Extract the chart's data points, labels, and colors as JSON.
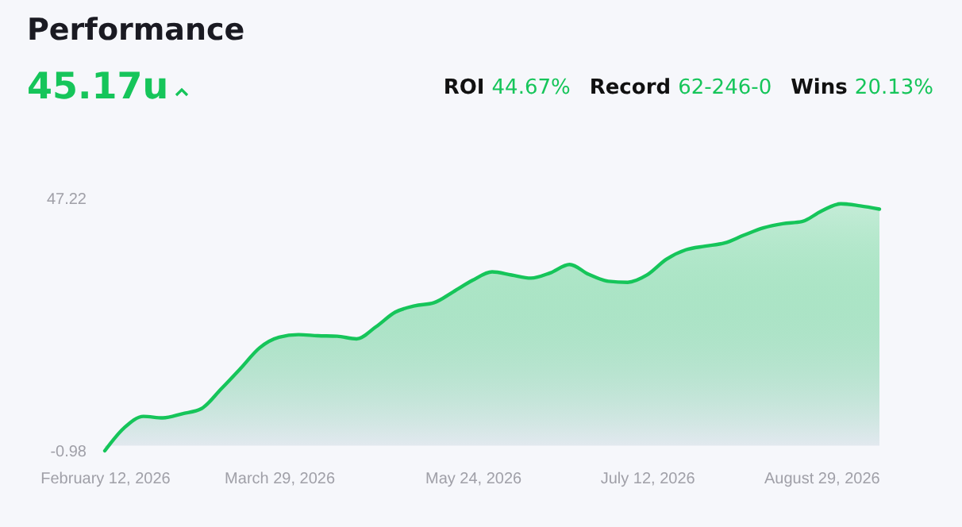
{
  "chart_data": {
    "type": "area",
    "title": "Performance",
    "subtitle": "45.17u",
    "annotations": [
      "ROI 44.67%",
      "Record 62-246-0",
      "Wins 20.13%"
    ],
    "categories": [
      "February 12, 2026",
      null,
      null,
      null,
      null,
      null,
      null,
      null,
      null,
      "March 29, 2026",
      null,
      null,
      null,
      null,
      null,
      null,
      null,
      null,
      null,
      "May 24, 2026",
      null,
      null,
      null,
      null,
      null,
      null,
      null,
      null,
      "July 12, 2026",
      null,
      null,
      null,
      null,
      null,
      null,
      null,
      null,
      "August 29, 2026",
      null,
      null,
      null
    ],
    "series": [
      {
        "color": "#16c55a",
        "values": [
          -0.98,
          3.4,
          5.6,
          5.3,
          6.1,
          7.1,
          10.8,
          14.7,
          18.7,
          20.7,
          21.2,
          21.0,
          20.9,
          20.4,
          22.7,
          25.5,
          26.7,
          27.3,
          29.4,
          31.6,
          33.2,
          32.6,
          32.0,
          33.0,
          34.6,
          32.7,
          31.4,
          31.2,
          32.6,
          35.6,
          37.4,
          38.1,
          38.7,
          40.2,
          41.6,
          42.4,
          42.8,
          44.8,
          46.2,
          45.8,
          45.17
        ]
      }
    ],
    "ylim": [
      -0.98,
      47.22
    ],
    "yticks": [
      -0.98,
      47.22
    ],
    "grid": false
  }
}
